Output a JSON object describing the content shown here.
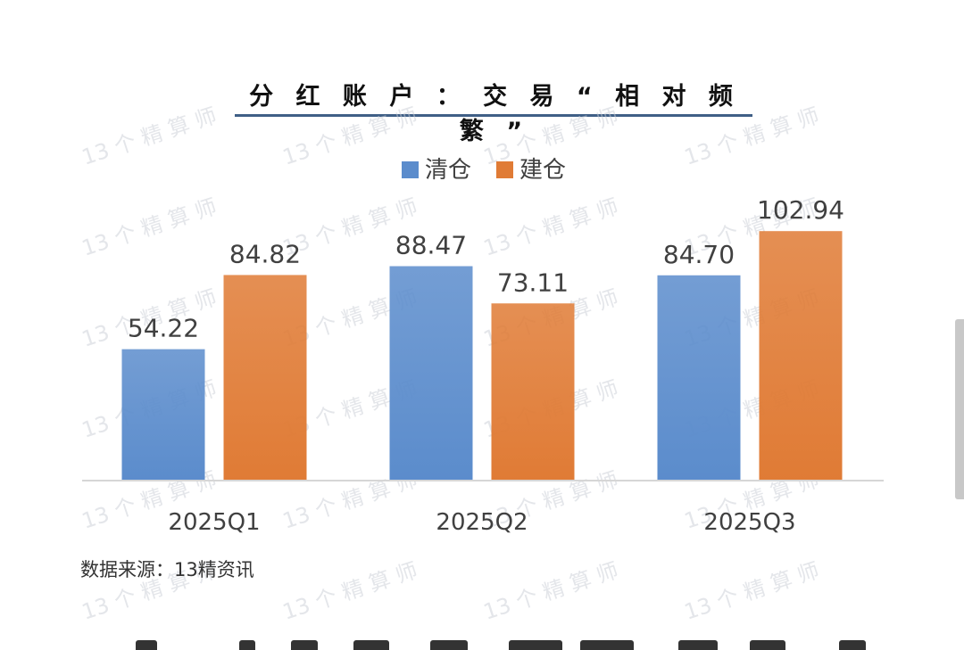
{
  "chart_data": {
    "type": "bar",
    "title": "分 红 账 户 ： 交 易 “ 相 对 频 繁 ”",
    "categories": [
      "2025Q1",
      "2025Q2",
      "2025Q3"
    ],
    "series": [
      {
        "name": "清仓",
        "values": [
          54.22,
          88.47,
          84.7
        ],
        "labels": [
          "54.22",
          "88.47",
          "84.70"
        ],
        "color": "#5b8ccc"
      },
      {
        "name": "建仓",
        "values": [
          84.82,
          73.11,
          102.94
        ],
        "labels": [
          "84.82",
          "73.11",
          "102.94"
        ],
        "color": "#e07b35"
      }
    ],
    "ylim": [
      0,
      110
    ],
    "legend_position": "top",
    "grid": false
  },
  "source_note": "数据来源：13精资讯",
  "watermark": "13 个 精 算 师",
  "colors": {
    "series_1": "#5b8ccc",
    "series_2": "#e07b35",
    "title_rule": "#3f5f86"
  }
}
